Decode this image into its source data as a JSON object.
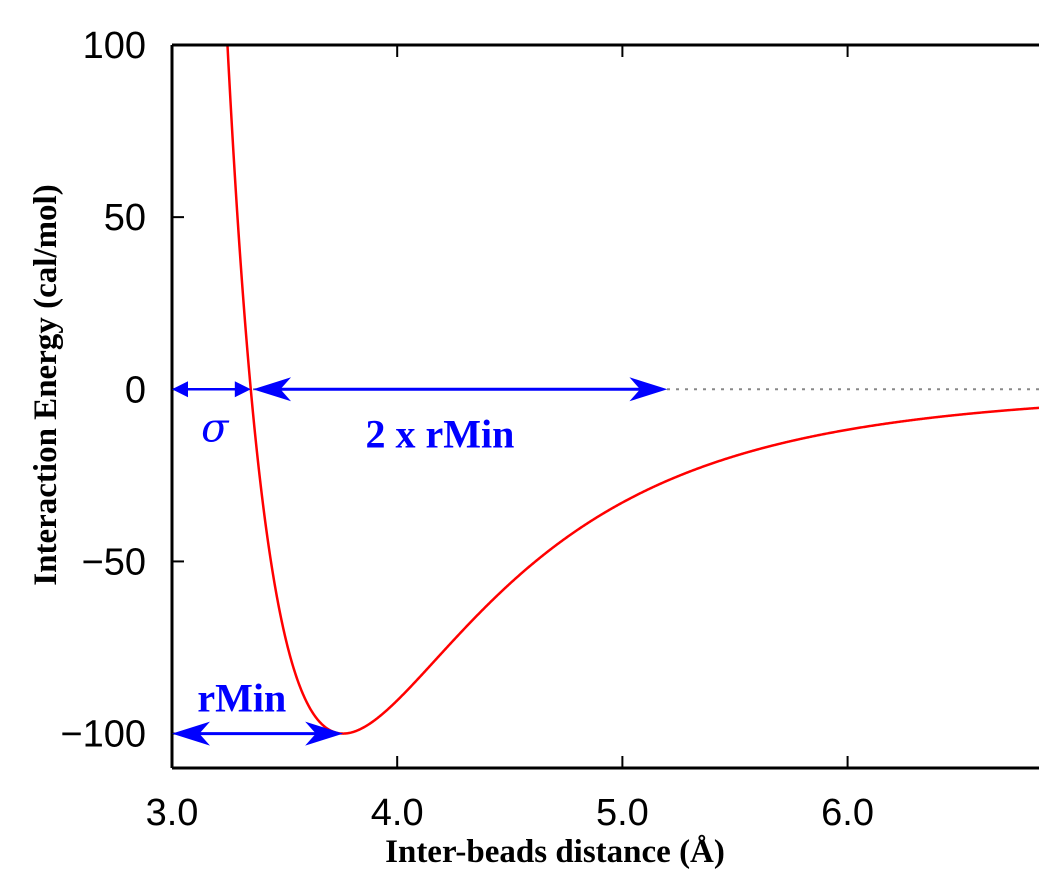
{
  "chart_data": {
    "type": "line",
    "xlabel": "Inter-beads distance (Å)",
    "ylabel": "Interaction Energy (cal/mol)",
    "xlim": [
      3.0,
      6.85
    ],
    "ylim": [
      -110,
      100
    ],
    "x_ticks": [
      "3.0",
      "4.0",
      "5.0",
      "6.0"
    ],
    "y_ticks": [
      "100",
      "50",
      "0",
      "−50",
      "−100"
    ],
    "x_tick_values": [
      3.0,
      4.0,
      5.0,
      6.0
    ],
    "y_tick_values": [
      100,
      50,
      0,
      -50,
      -100
    ],
    "grid": false,
    "series": [
      {
        "color": "#ff0000",
        "potential": "Lennard-Jones 12-6",
        "epsilon": 100,
        "r_min": 3.76
      }
    ],
    "zero_line": {
      "style": "dotted",
      "color": "#888888"
    },
    "annotations": {
      "sigma": {
        "label": "σ",
        "x_start": 3.0,
        "x_end": 3.35,
        "y": 0
      },
      "two_rmin": {
        "label": "2 x rMin",
        "x_start": 3.36,
        "x_end": 5.2,
        "y": 0
      },
      "rmin": {
        "label": "rMin",
        "x_start": 3.0,
        "x_end": 3.76,
        "y": -100
      }
    },
    "annotation_color": "#0000ff"
  }
}
